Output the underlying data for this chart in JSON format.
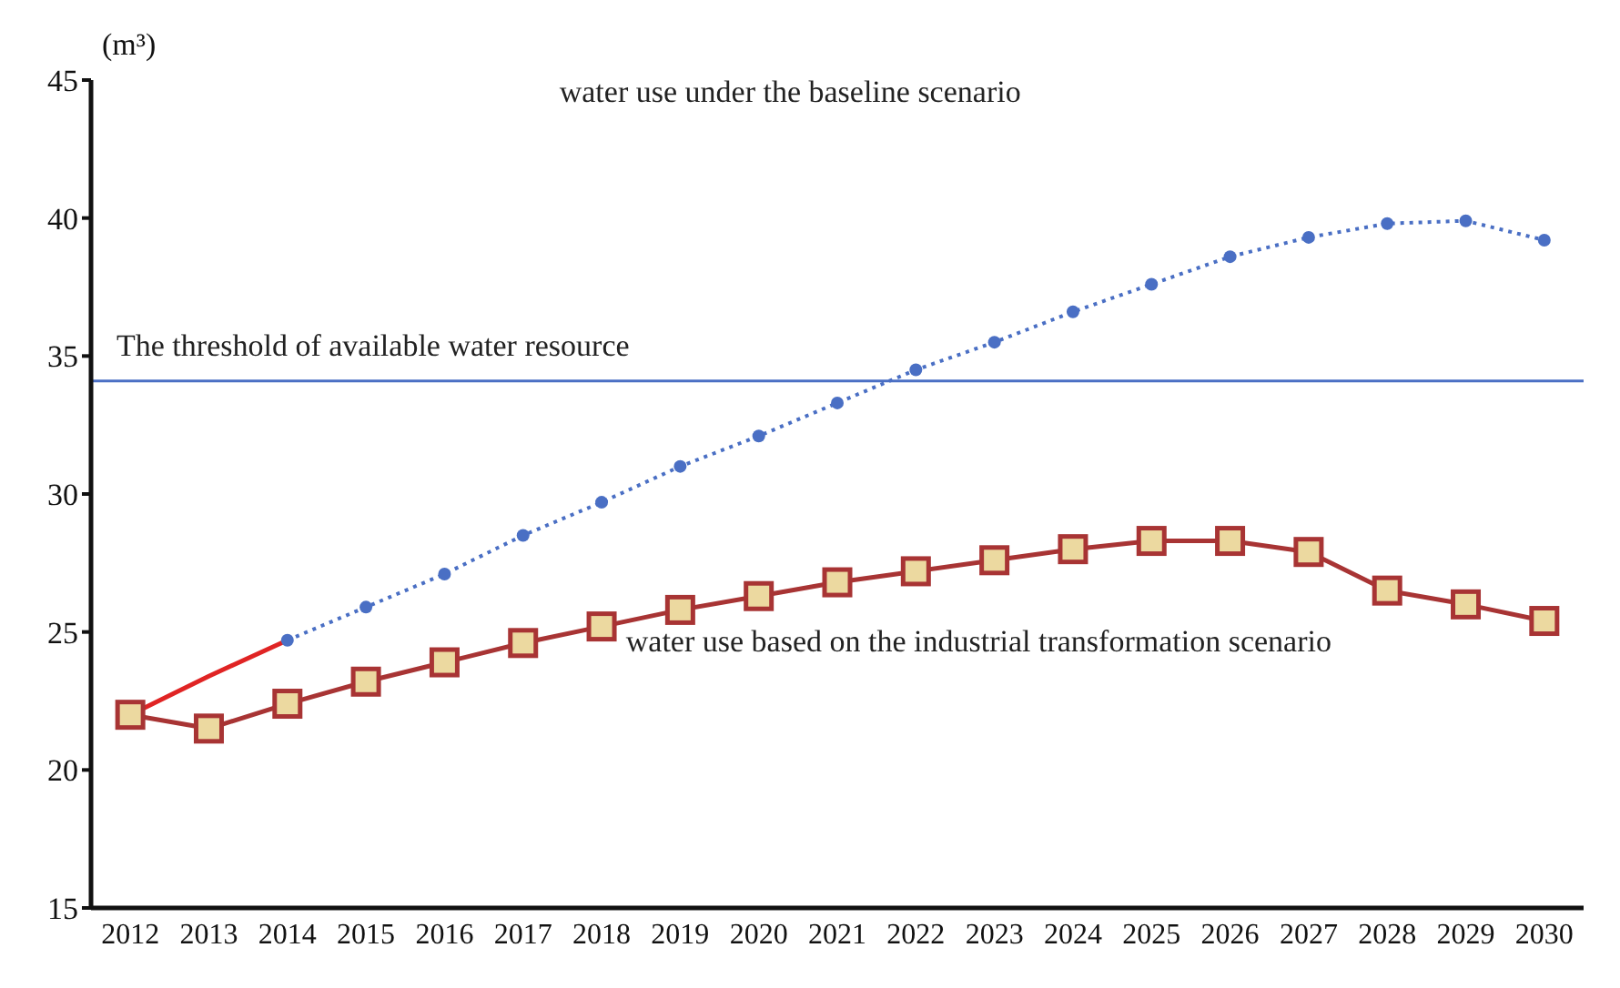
{
  "chart_data": {
    "type": "line",
    "categories": [
      "2012",
      "2013",
      "2014",
      "2015",
      "2016",
      "2017",
      "2018",
      "2019",
      "2020",
      "2021",
      "2022",
      "2023",
      "2024",
      "2025",
      "2026",
      "2027",
      "2028",
      "2029",
      "2030"
    ],
    "ylabel": "(m³)",
    "ylim": [
      15,
      45
    ],
    "yticks": [
      15,
      20,
      25,
      30,
      35,
      40,
      45
    ],
    "grid": false,
    "legend": false,
    "annotations": [
      "water use under the baseline scenario",
      "water use based on the industrial transformation scenario"
    ],
    "series": [
      {
        "color": "#e02424",
        "marker": "none",
        "line_style": "solid",
        "values": [
          22.0,
          23.4,
          24.7,
          null,
          null,
          null,
          null,
          null,
          null,
          null,
          null,
          null,
          null,
          null,
          null,
          null,
          null,
          null,
          null
        ]
      },
      {
        "color": "#4a6fc4",
        "marker": "circle",
        "line_style": "dotted",
        "values": [
          null,
          null,
          24.7,
          25.9,
          27.1,
          28.5,
          29.7,
          31.0,
          32.1,
          33.3,
          34.5,
          35.5,
          36.6,
          37.6,
          38.6,
          39.3,
          39.8,
          39.9,
          39.2
        ]
      },
      {
        "color": "#a83434",
        "marker": "square",
        "line_style": "solid",
        "values": [
          22.0,
          21.5,
          22.4,
          23.2,
          23.9,
          24.6,
          25.2,
          25.8,
          26.3,
          26.8,
          27.2,
          27.6,
          28.0,
          28.3,
          28.3,
          27.9,
          26.5,
          26.0,
          25.4
        ]
      }
    ],
    "ref_lines": [
      {
        "axis": "y",
        "value": 34.1,
        "label": "The threshold of available water resource",
        "color": "#4a6fc4",
        "line_style": "solid"
      }
    ]
  }
}
